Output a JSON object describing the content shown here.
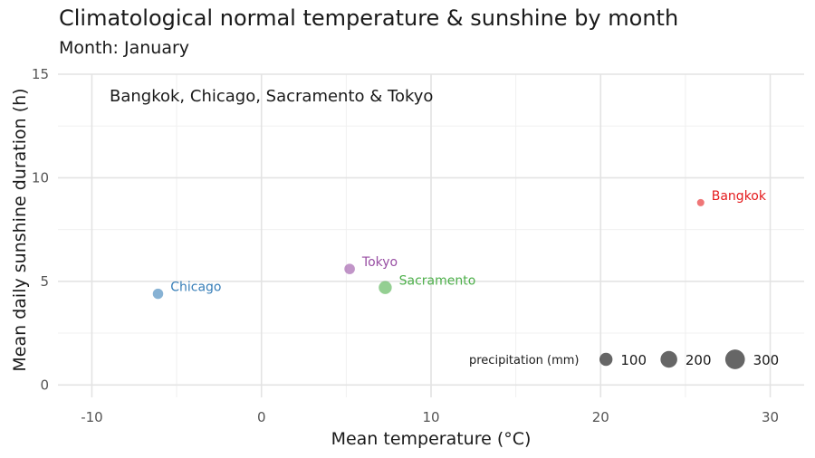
{
  "chart_data": {
    "type": "scatter",
    "title": "Climatological normal temperature & sunshine by month",
    "subtitle": "Month: January",
    "annotation": "Bangkok, Chicago, Sacramento & Tokyo",
    "xlabel": "Mean temperature (°C)",
    "ylabel": "Mean daily sunshine duration (h)",
    "xlim": [
      -12,
      32
    ],
    "ylim": [
      -0.6,
      15
    ],
    "xticks": [
      -10,
      0,
      10,
      20,
      30
    ],
    "yticks": [
      0,
      5,
      10,
      15
    ],
    "grid": true,
    "points": [
      {
        "label": "Bangkok",
        "x": 25.9,
        "y": 8.8,
        "precipitation": 13,
        "color": "#e41a1c"
      },
      {
        "label": "Chicago",
        "x": -6.1,
        "y": 4.4,
        "precipitation": 50,
        "color": "#377eb8"
      },
      {
        "label": "Sacramento",
        "x": 7.3,
        "y": 4.7,
        "precipitation": 100,
        "color": "#4daf4a"
      },
      {
        "label": "Tokyo",
        "x": 5.2,
        "y": 5.6,
        "precipitation": 52,
        "color": "#984ea3"
      }
    ],
    "size_legend": {
      "title": "precipitation (mm)",
      "placement": "bottom-right",
      "entries": [
        {
          "label": "100",
          "value": 100
        },
        {
          "label": "200",
          "value": 200
        },
        {
          "label": "300",
          "value": 300
        }
      ]
    }
  }
}
